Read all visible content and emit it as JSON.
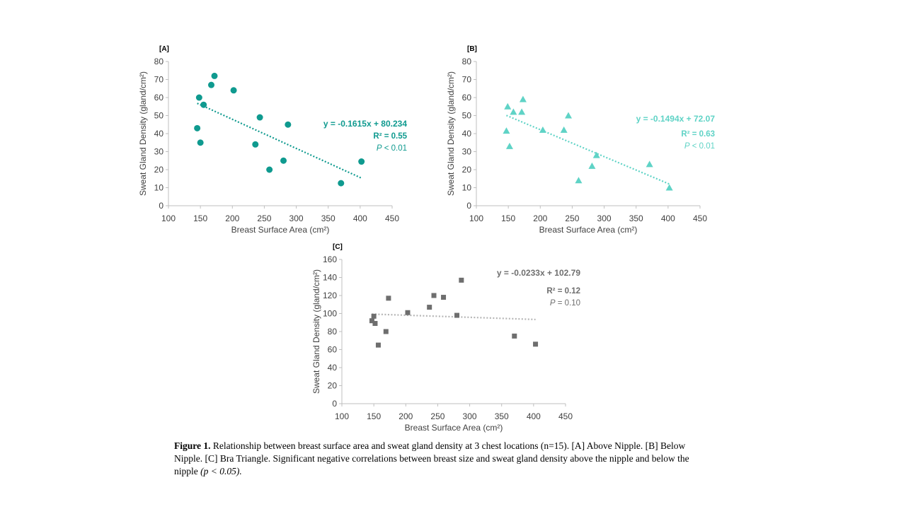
{
  "caption": {
    "lead": "Figure 1.",
    "body": " Relationship between breast surface area and sweat gland density at 3 chest locations (n=15). [A] Above Nipple. [B] Below Nipple. [C] Bra Triangle. Significant negative correlations between breast size and sweat gland density above the nipple and below the nipple ",
    "pval": "(p < 0.05)."
  },
  "chart_data": [
    {
      "type": "scatter",
      "panel_label": "[A]",
      "xlabel": "Breast Surface Area (cm²)",
      "ylabel": "Sweat Gland Density (gland/cm²)",
      "xlim": [
        100,
        450
      ],
      "ylim": [
        0,
        80
      ],
      "xticks": [
        100,
        150,
        200,
        250,
        300,
        350,
        400,
        450
      ],
      "yticks": [
        0,
        10,
        20,
        30,
        40,
        50,
        60,
        70,
        80
      ],
      "color": "#0f9a8f",
      "marker": "circle",
      "grid": false,
      "points": [
        {
          "x": 145,
          "y": 43
        },
        {
          "x": 148,
          "y": 60
        },
        {
          "x": 150,
          "y": 35
        },
        {
          "x": 155,
          "y": 56
        },
        {
          "x": 167,
          "y": 67
        },
        {
          "x": 172,
          "y": 72
        },
        {
          "x": 202,
          "y": 64
        },
        {
          "x": 236,
          "y": 34
        },
        {
          "x": 243,
          "y": 49
        },
        {
          "x": 258,
          "y": 20
        },
        {
          "x": 280,
          "y": 25
        },
        {
          "x": 287,
          "y": 45
        },
        {
          "x": 370,
          "y": 12.5
        },
        {
          "x": 402,
          "y": 24.5
        }
      ],
      "trendline": {
        "slope": -0.1615,
        "intercept": 80.234,
        "x_range": [
          145,
          402
        ]
      },
      "annotation": {
        "equation": "y = -0.1615x + 80.234",
        "r2": "R² = 0.55",
        "p_label": "P",
        "p_value": " < 0.01"
      }
    },
    {
      "type": "scatter",
      "panel_label": "[B]",
      "xlabel": "Breast Surface Area (cm²)",
      "ylabel": "Sweat Gland Density (gland/cm²)",
      "xlim": [
        100,
        450
      ],
      "ylim": [
        0,
        80
      ],
      "xticks": [
        100,
        150,
        200,
        250,
        300,
        350,
        400,
        450
      ],
      "yticks": [
        0,
        10,
        20,
        30,
        40,
        50,
        60,
        70,
        80
      ],
      "color": "#5fd3c6",
      "marker": "triangle",
      "grid": false,
      "points": [
        {
          "x": 147,
          "y": 41.5
        },
        {
          "x": 149,
          "y": 55
        },
        {
          "x": 152,
          "y": 33
        },
        {
          "x": 158,
          "y": 52
        },
        {
          "x": 171,
          "y": 52
        },
        {
          "x": 173,
          "y": 59
        },
        {
          "x": 204,
          "y": 42
        },
        {
          "x": 237,
          "y": 42
        },
        {
          "x": 244,
          "y": 50
        },
        {
          "x": 260,
          "y": 14
        },
        {
          "x": 281,
          "y": 22
        },
        {
          "x": 288,
          "y": 28
        },
        {
          "x": 371,
          "y": 23
        },
        {
          "x": 402,
          "y": 10
        }
      ],
      "trendline": {
        "slope": -0.1494,
        "intercept": 72.07,
        "x_range": [
          147,
          402
        ]
      },
      "annotation": {
        "equation": "y = -0.1494x + 72.07",
        "r2": "R² = 0.63",
        "p_label": "P",
        "p_value": " < 0.01"
      }
    },
    {
      "type": "scatter",
      "panel_label": "[C]",
      "xlabel": "Breast Surface Area (cm²)",
      "ylabel": "Sweat Gland Density (gland/cm²)",
      "xlim": [
        100,
        450
      ],
      "ylim": [
        0,
        160
      ],
      "xticks": [
        100,
        150,
        200,
        250,
        300,
        350,
        400,
        450
      ],
      "yticks": [
        0,
        20,
        40,
        60,
        80,
        100,
        120,
        140,
        160
      ],
      "color": "#6e6e6e",
      "trendline_color": "#b5b5b5",
      "marker": "square",
      "grid": false,
      "points": [
        {
          "x": 147,
          "y": 92
        },
        {
          "x": 150,
          "y": 97
        },
        {
          "x": 152,
          "y": 89
        },
        {
          "x": 157,
          "y": 65
        },
        {
          "x": 169,
          "y": 80
        },
        {
          "x": 173,
          "y": 117
        },
        {
          "x": 203,
          "y": 101
        },
        {
          "x": 237,
          "y": 107
        },
        {
          "x": 244,
          "y": 120
        },
        {
          "x": 259,
          "y": 118
        },
        {
          "x": 280,
          "y": 98
        },
        {
          "x": 287,
          "y": 137
        },
        {
          "x": 370,
          "y": 75
        },
        {
          "x": 403,
          "y": 66
        }
      ],
      "trendline": {
        "slope": -0.0233,
        "intercept": 102.79,
        "x_range": [
          147,
          403
        ]
      },
      "annotation": {
        "equation": "y = -0.0233x + 102.79",
        "r2": "R² = 0.12",
        "p_label": "P",
        "p_value": " = 0.10"
      }
    }
  ]
}
